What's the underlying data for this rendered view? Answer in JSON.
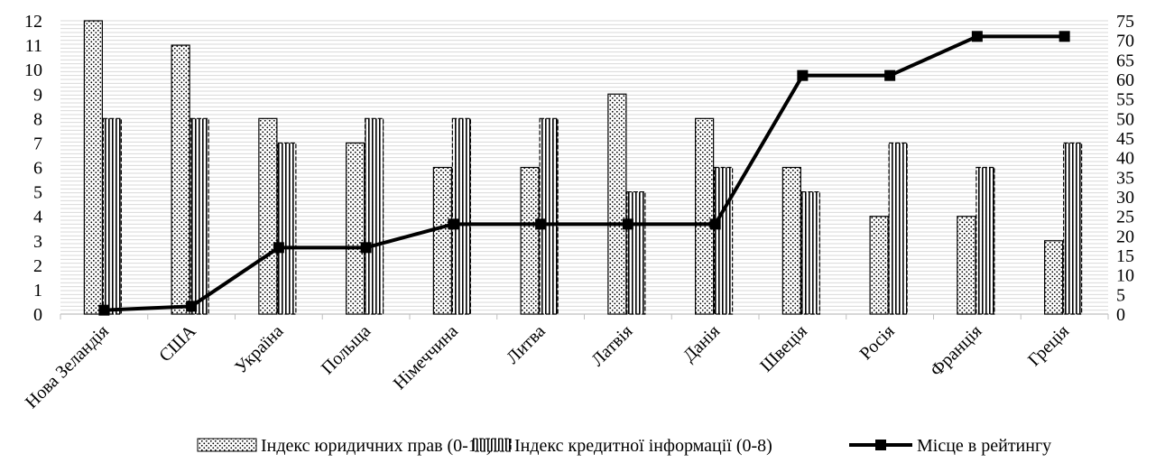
{
  "chart_data": {
    "type": "bar",
    "categories": [
      "Нова Зеландія",
      "США",
      "Україна",
      "Польща",
      "Німеччина",
      "Литва",
      "Латвія",
      "Данія",
      "Швеція",
      "Росія",
      "Франція",
      "Греція"
    ],
    "series": [
      {
        "name": "Індекс юридичних прав (0-12)",
        "type": "bar",
        "axis": "left",
        "pattern": "dots",
        "values": [
          12,
          11,
          8,
          7,
          6,
          6,
          9,
          8,
          6,
          4,
          4,
          3
        ]
      },
      {
        "name": "Індекс кредитної інформації (0-8)",
        "type": "bar",
        "axis": "left",
        "pattern": "vertical-stripes",
        "values": [
          8,
          8,
          7,
          8,
          8,
          8,
          5,
          6,
          5,
          7,
          6,
          7
        ]
      },
      {
        "name": "Місце в рейтингу",
        "type": "line",
        "axis": "right",
        "marker": "square",
        "color": "#000000",
        "values": [
          1,
          2,
          17,
          17,
          23,
          23,
          23,
          23,
          61,
          61,
          71,
          71
        ]
      }
    ],
    "y_left": {
      "min": 0,
      "max": 12,
      "ticks": [
        "0",
        "1",
        "2",
        "3",
        "4",
        "5",
        "6",
        "7",
        "8",
        "9",
        "10",
        "11",
        "12"
      ]
    },
    "y_right": {
      "min": 0,
      "max": 75,
      "ticks": [
        "0",
        "5",
        "10",
        "15",
        "20",
        "25",
        "30",
        "35",
        "40",
        "45",
        "50",
        "55",
        "60",
        "65",
        "70",
        "75"
      ]
    },
    "grid": true,
    "gridline_color": "#d9d9d9",
    "legend_position": "bottom"
  }
}
